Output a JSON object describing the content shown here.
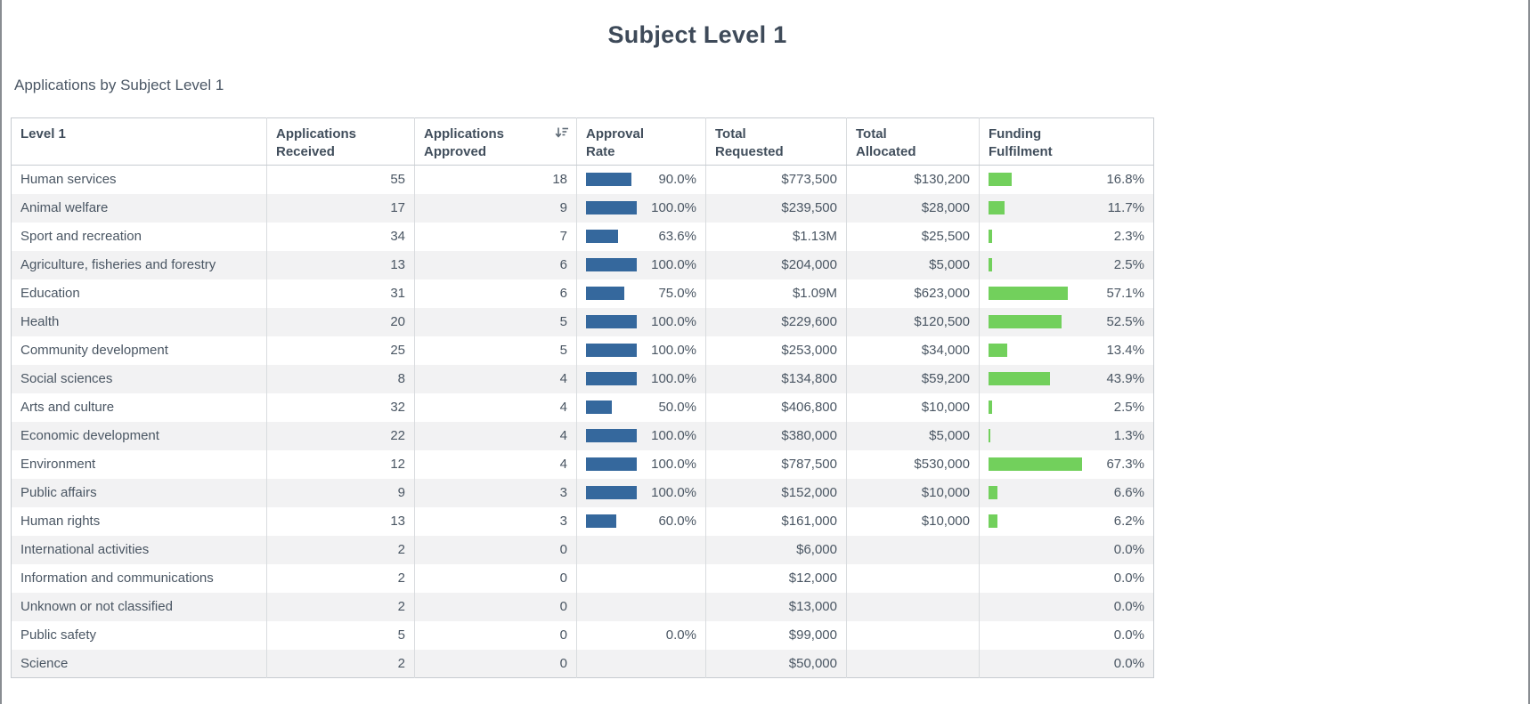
{
  "page": {
    "title": "Subject Level 1",
    "table_label": "Applications by Subject Level 1"
  },
  "colors": {
    "approval_bar": "#35689d",
    "fulfilment_bar": "#72d05c",
    "row_stripe": "#f2f2f3",
    "title_text": "#3e4a59",
    "cell_text": "#4a5663"
  },
  "table": {
    "columns": [
      {
        "id": "level1",
        "lines": [
          "Level 1"
        ],
        "align": "left"
      },
      {
        "id": "received",
        "lines": [
          "Applications",
          "Received"
        ],
        "align": "right"
      },
      {
        "id": "approved",
        "lines": [
          "Applications",
          "Approved"
        ],
        "align": "right",
        "sort_icon": "sort-descending-icon"
      },
      {
        "id": "approval_rate",
        "lines": [
          "Approval",
          "Rate"
        ],
        "align": "bar",
        "bar_color_key": "approval_bar"
      },
      {
        "id": "requested",
        "lines": [
          "Total",
          "Requested"
        ],
        "align": "right"
      },
      {
        "id": "allocated",
        "lines": [
          "Total",
          "Allocated"
        ],
        "align": "right"
      },
      {
        "id": "fulfilment",
        "lines": [
          "Funding",
          "Fulfilment"
        ],
        "align": "bar",
        "bar_color_key": "fulfilment_bar"
      }
    ],
    "rows": [
      {
        "level1": "Human services",
        "received": "55",
        "approved": "18",
        "approval_rate": 90.0,
        "approval_rate_label": "90.0%",
        "requested": "$773,500",
        "allocated": "$130,200",
        "fulfilment": 16.8,
        "fulfilment_label": "16.8%"
      },
      {
        "level1": "Animal welfare",
        "received": "17",
        "approved": "9",
        "approval_rate": 100.0,
        "approval_rate_label": "100.0%",
        "requested": "$239,500",
        "allocated": "$28,000",
        "fulfilment": 11.7,
        "fulfilment_label": "11.7%"
      },
      {
        "level1": "Sport and recreation",
        "received": "34",
        "approved": "7",
        "approval_rate": 63.6,
        "approval_rate_label": "63.6%",
        "requested": "$1.13M",
        "allocated": "$25,500",
        "fulfilment": 2.3,
        "fulfilment_label": "2.3%"
      },
      {
        "level1": "Agriculture, fisheries and forestry",
        "received": "13",
        "approved": "6",
        "approval_rate": 100.0,
        "approval_rate_label": "100.0%",
        "requested": "$204,000",
        "allocated": "$5,000",
        "fulfilment": 2.5,
        "fulfilment_label": "2.5%"
      },
      {
        "level1": "Education",
        "received": "31",
        "approved": "6",
        "approval_rate": 75.0,
        "approval_rate_label": "75.0%",
        "requested": "$1.09M",
        "allocated": "$623,000",
        "fulfilment": 57.1,
        "fulfilment_label": "57.1%"
      },
      {
        "level1": "Health",
        "received": "20",
        "approved": "5",
        "approval_rate": 100.0,
        "approval_rate_label": "100.0%",
        "requested": "$229,600",
        "allocated": "$120,500",
        "fulfilment": 52.5,
        "fulfilment_label": "52.5%"
      },
      {
        "level1": "Community development",
        "received": "25",
        "approved": "5",
        "approval_rate": 100.0,
        "approval_rate_label": "100.0%",
        "requested": "$253,000",
        "allocated": "$34,000",
        "fulfilment": 13.4,
        "fulfilment_label": "13.4%"
      },
      {
        "level1": "Social sciences",
        "received": "8",
        "approved": "4",
        "approval_rate": 100.0,
        "approval_rate_label": "100.0%",
        "requested": "$134,800",
        "allocated": "$59,200",
        "fulfilment": 43.9,
        "fulfilment_label": "43.9%"
      },
      {
        "level1": "Arts and culture",
        "received": "32",
        "approved": "4",
        "approval_rate": 50.0,
        "approval_rate_label": "50.0%",
        "requested": "$406,800",
        "allocated": "$10,000",
        "fulfilment": 2.5,
        "fulfilment_label": "2.5%"
      },
      {
        "level1": "Economic development",
        "received": "22",
        "approved": "4",
        "approval_rate": 100.0,
        "approval_rate_label": "100.0%",
        "requested": "$380,000",
        "allocated": "$5,000",
        "fulfilment": 1.3,
        "fulfilment_label": "1.3%"
      },
      {
        "level1": "Environment",
        "received": "12",
        "approved": "4",
        "approval_rate": 100.0,
        "approval_rate_label": "100.0%",
        "requested": "$787,500",
        "allocated": "$530,000",
        "fulfilment": 67.3,
        "fulfilment_label": "67.3%"
      },
      {
        "level1": "Public affairs",
        "received": "9",
        "approved": "3",
        "approval_rate": 100.0,
        "approval_rate_label": "100.0%",
        "requested": "$152,000",
        "allocated": "$10,000",
        "fulfilment": 6.6,
        "fulfilment_label": "6.6%"
      },
      {
        "level1": "Human rights",
        "received": "13",
        "approved": "3",
        "approval_rate": 60.0,
        "approval_rate_label": "60.0%",
        "requested": "$161,000",
        "allocated": "$10,000",
        "fulfilment": 6.2,
        "fulfilment_label": "6.2%"
      },
      {
        "level1": "International activities",
        "received": "2",
        "approved": "0",
        "approval_rate": null,
        "approval_rate_label": "",
        "requested": "$6,000",
        "allocated": "",
        "fulfilment": 0.0,
        "fulfilment_label": "0.0%"
      },
      {
        "level1": "Information and communications",
        "received": "2",
        "approved": "0",
        "approval_rate": null,
        "approval_rate_label": "",
        "requested": "$12,000",
        "allocated": "",
        "fulfilment": 0.0,
        "fulfilment_label": "0.0%"
      },
      {
        "level1": "Unknown or not classified",
        "received": "2",
        "approved": "0",
        "approval_rate": null,
        "approval_rate_label": "",
        "requested": "$13,000",
        "allocated": "",
        "fulfilment": 0.0,
        "fulfilment_label": "0.0%"
      },
      {
        "level1": "Public safety",
        "received": "5",
        "approved": "0",
        "approval_rate": 0.0,
        "approval_rate_label": "0.0%",
        "requested": "$99,000",
        "allocated": "",
        "fulfilment": 0.0,
        "fulfilment_label": "0.0%"
      },
      {
        "level1": "Science",
        "received": "2",
        "approved": "0",
        "approval_rate": null,
        "approval_rate_label": "",
        "requested": "$50,000",
        "allocated": "",
        "fulfilment": 0.0,
        "fulfilment_label": "0.0%"
      }
    ]
  }
}
